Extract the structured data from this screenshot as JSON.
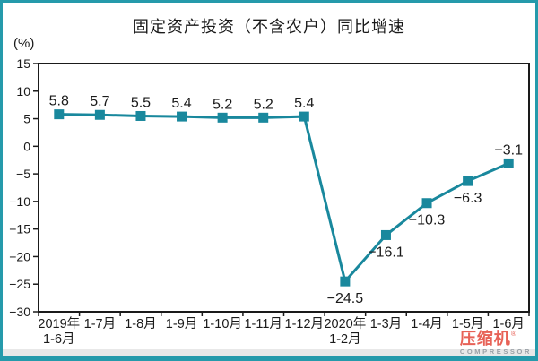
{
  "chart_data": {
    "type": "line",
    "title": "固定资产投资（不含农户）同比增速",
    "unit_label": "(%)",
    "categories": [
      [
        "2019年",
        "1-6月"
      ],
      [
        "1-7月"
      ],
      [
        "1-8月"
      ],
      [
        "1-9月"
      ],
      [
        "1-10月"
      ],
      [
        "1-11月"
      ],
      [
        "1-12月"
      ],
      [
        "2020年",
        "1-2月"
      ],
      [
        "1-3月"
      ],
      [
        "1-4月"
      ],
      [
        "1-5月"
      ],
      [
        "1-6月"
      ]
    ],
    "values": [
      5.8,
      5.7,
      5.5,
      5.4,
      5.2,
      5.2,
      5.4,
      -24.5,
      -16.1,
      -10.3,
      -6.3,
      -3.1
    ],
    "ylim": [
      -30,
      15
    ],
    "ytick_step": 5,
    "ytick_labels": [
      "15",
      "10",
      "5",
      "0",
      "-5",
      "-10",
      "-15",
      "-20",
      "-25",
      "-30"
    ],
    "grid": false,
    "legend": null,
    "marker": "square"
  },
  "colors": {
    "line": "#19889d",
    "frame": "#259aab",
    "axis": "#1a1a1a",
    "text": "#1a1a1a",
    "strip": "#e8e8e8",
    "watermark_red": "#e23b2e",
    "watermark_gray": "#9aa0a6"
  },
  "watermark": {
    "logo_text": "压缩机",
    "registered_mark": "®",
    "subtext": "COMPRESSOR"
  }
}
